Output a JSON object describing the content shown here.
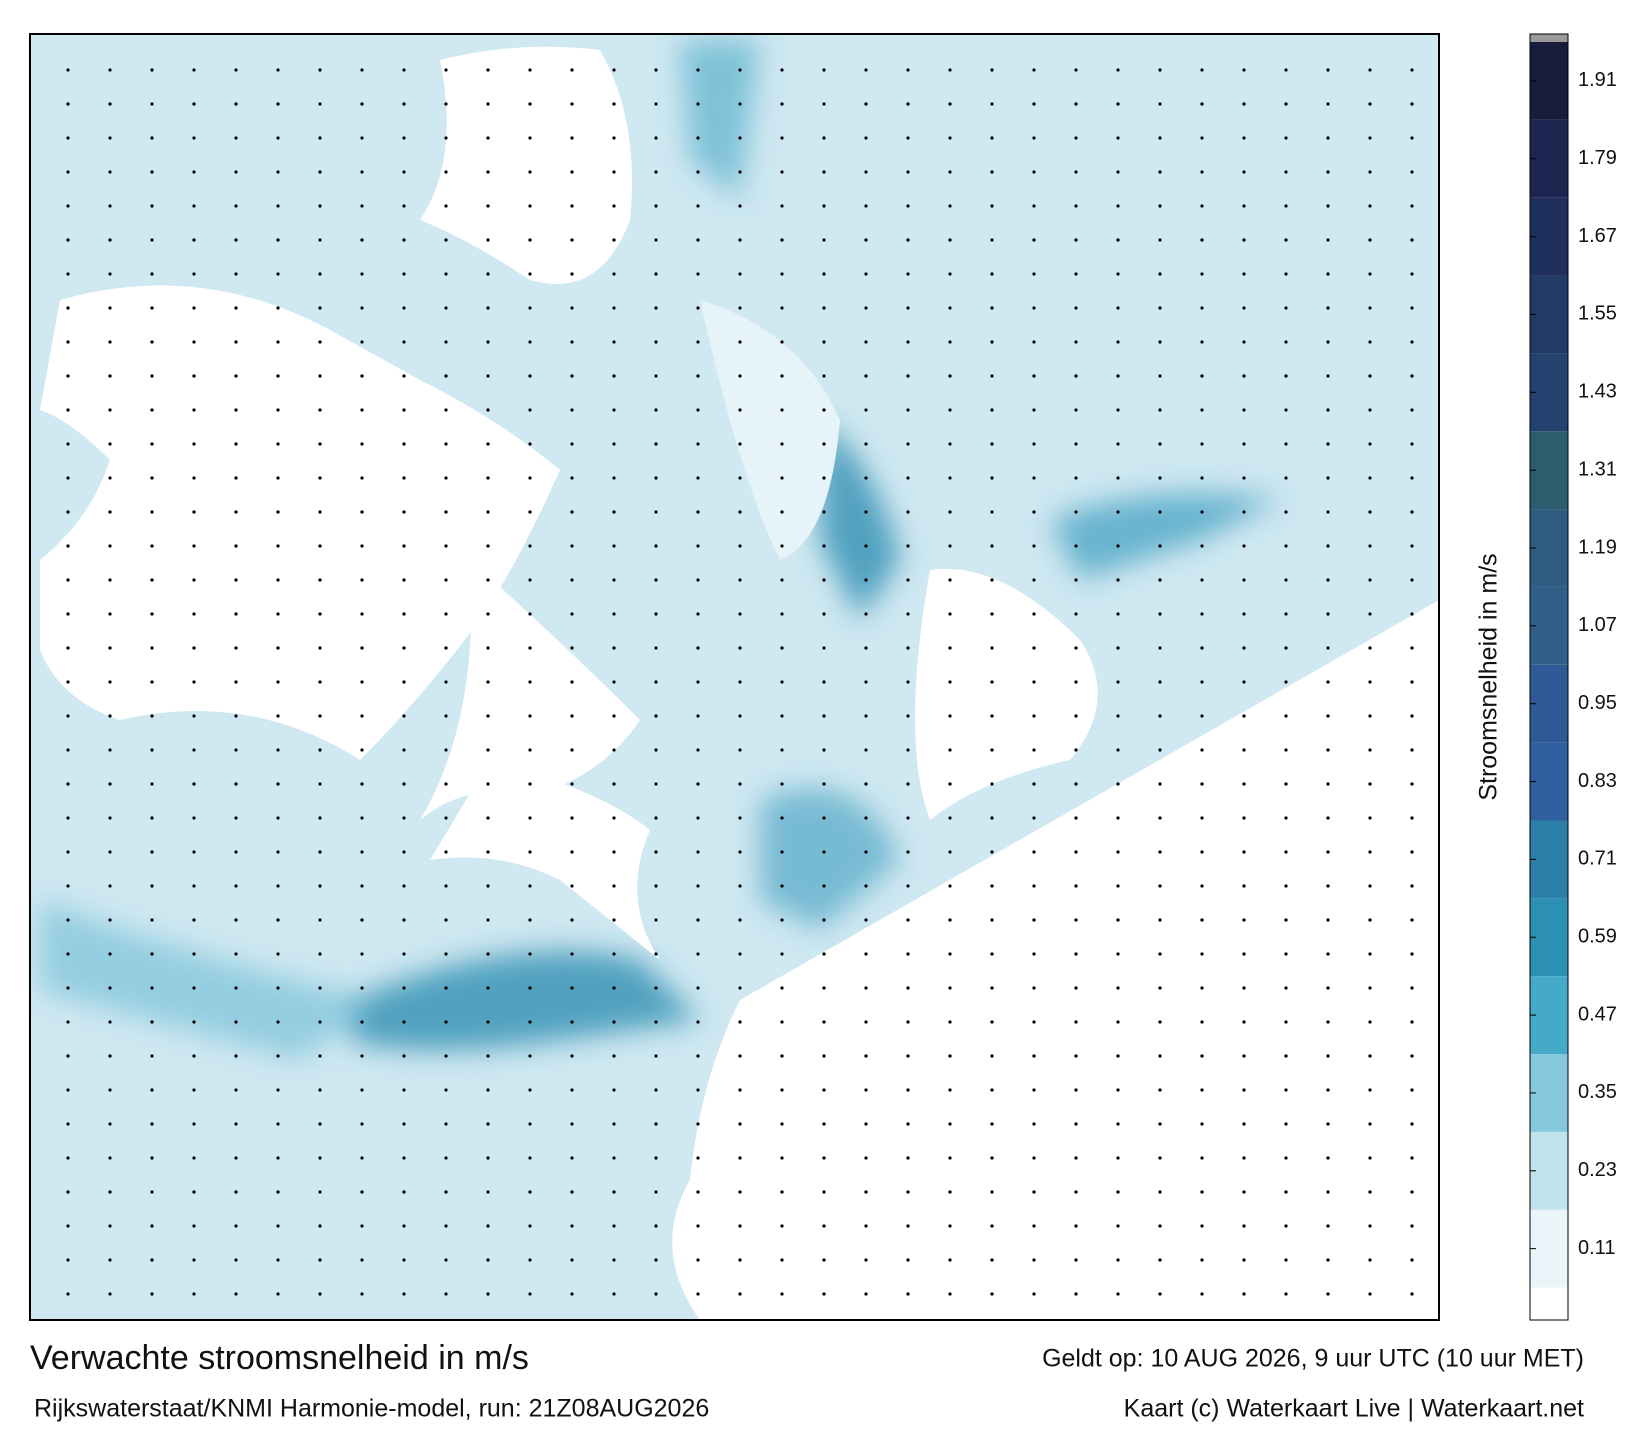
{
  "map": {
    "title": "Verwachte stroomsnelheid in m/s",
    "subtitle": "Rijkswaterstaat/KNMI Harmonie-model, run: 21Z08AUG2026",
    "valid_time": "Geldt op: 10 AUG 2026, 9 uur UTC (10 uur MET)",
    "credit": "Kaart (c) Waterkaart Live | Waterkaart.net",
    "colorbar": {
      "label": "Stroomsnelheid in m/s",
      "clim": [
        0,
        1.97
      ],
      "ticks": [
        0.11,
        0.23,
        0.35,
        0.47,
        0.59,
        0.71,
        0.83,
        0.95,
        1.07,
        1.19,
        1.31,
        1.43,
        1.55,
        1.67,
        1.79,
        1.91
      ],
      "colors": [
        "#eaf5f9",
        "#bfe2ec",
        "#86c8dc",
        "#45a9c8",
        "#2c90b2",
        "#2b7fa8",
        "#2f5f9e",
        "#2e5b97",
        "#2f5f88",
        "#2f5b80",
        "#2b5d6e",
        "#24426f",
        "#223a66",
        "#1f305c",
        "#1c2650",
        "#161c3a"
      ]
    }
  }
}
